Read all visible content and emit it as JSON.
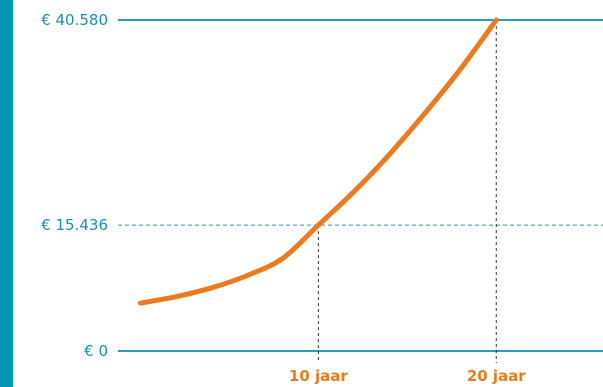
{
  "colors": {
    "accent_bar": "#0096B4",
    "axis_line": "#2A9BB8",
    "curve": "#EC7A1E",
    "y_label": "#1A8FB0",
    "x_label": "#EC7A1E",
    "drop_line": "#333333"
  },
  "chart_data": {
    "type": "line",
    "title": "",
    "xlabel": "",
    "ylabel": "",
    "y_tick_labels": [
      "€ 0",
      "€ 15.436",
      "€ 40.580"
    ],
    "y_tick_values": [
      0,
      15436,
      40580
    ],
    "x_markers": [
      {
        "label": "10 jaar",
        "x": 10,
        "y": 15436
      },
      {
        "label": "20 jaar",
        "x": 20,
        "y": 40580
      }
    ],
    "xlim": [
      -0.7,
      26
    ],
    "ylim": [
      0,
      40580
    ],
    "series": [
      {
        "x": [
          0,
          2,
          4,
          6,
          8,
          10,
          12,
          14,
          16,
          18,
          20
        ],
        "y": [
          5873,
          6660,
          7749,
          9260,
          11370,
          15436,
          19530,
          24120,
          29180,
          34600,
          40580
        ]
      }
    ],
    "grid": false
  }
}
